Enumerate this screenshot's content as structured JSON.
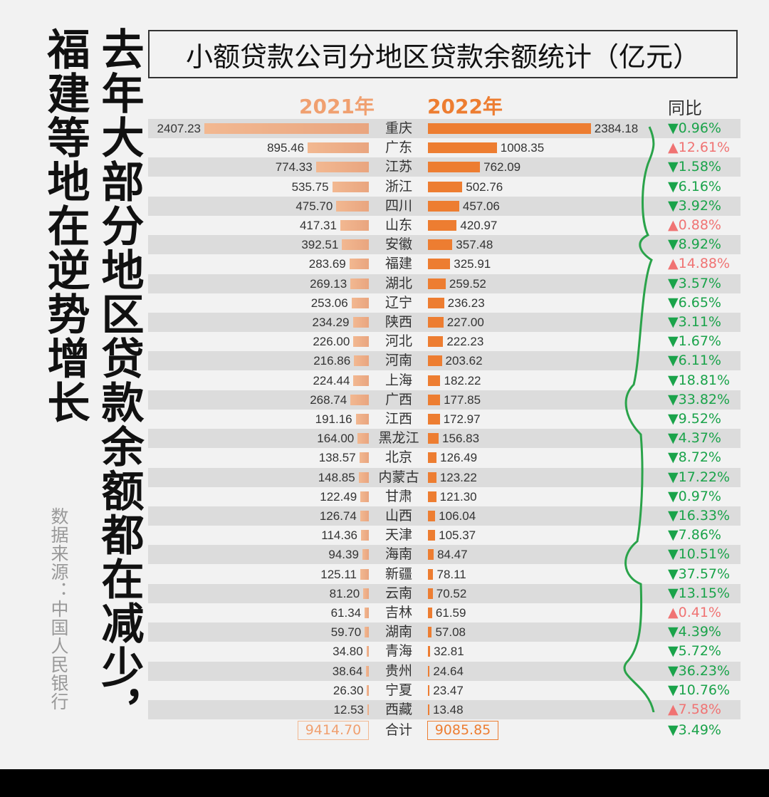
{
  "headline_left": "福建等地在逆势增长",
  "headline_right": "去年大部分地区贷款余额都在减少，",
  "source": "数据来源：中国人民银行",
  "colors": {
    "bar_2021": "#f2b891",
    "bar_2022": "#ed7d31",
    "down": "#1aa34a",
    "up": "#f07373",
    "band": "#dcdcdc"
  },
  "chart_data": {
    "type": "bar",
    "title": "小额贷款公司分地区贷款余额统计（亿元）",
    "series_labels": [
      "2021年",
      "2022年"
    ],
    "yoy_label": "同比",
    "categories": [
      "重庆",
      "广东",
      "江苏",
      "浙江",
      "四川",
      "山东",
      "安徽",
      "福建",
      "湖北",
      "辽宁",
      "陕西",
      "河北",
      "河南",
      "上海",
      "广西",
      "江西",
      "黑龙江",
      "北京",
      "内蒙古",
      "甘肃",
      "山西",
      "天津",
      "海南",
      "新疆",
      "云南",
      "吉林",
      "湖南",
      "青海",
      "贵州",
      "宁夏",
      "西藏"
    ],
    "series": [
      {
        "name": "2021年",
        "values": [
          "2407.23",
          "895.46",
          "774.33",
          "535.75",
          "475.70",
          "417.31",
          "392.51",
          "283.69",
          "269.13",
          "253.06",
          "234.29",
          "226.00",
          "216.86",
          "224.44",
          "268.74",
          "191.16",
          "164.00",
          "138.57",
          "148.85",
          "122.49",
          "126.74",
          "114.36",
          "94.39",
          "125.11",
          "81.20",
          "61.34",
          "59.70",
          "34.80",
          "38.64",
          "26.30",
          "12.53"
        ]
      },
      {
        "name": "2022年",
        "values": [
          "2384.18",
          "1008.35",
          "762.09",
          "502.76",
          "457.06",
          "420.97",
          "357.48",
          "325.91",
          "259.52",
          "236.23",
          "227.00",
          "222.23",
          "203.62",
          "182.22",
          "177.85",
          "172.97",
          "156.83",
          "126.49",
          "123.22",
          "121.30",
          "106.04",
          "105.37",
          "84.47",
          "78.11",
          "70.52",
          "61.59",
          "57.08",
          "32.81",
          "24.64",
          "23.47",
          "13.48"
        ]
      }
    ],
    "yoy": [
      {
        "dir": "down",
        "text": "0.96%"
      },
      {
        "dir": "up",
        "text": "12.61%"
      },
      {
        "dir": "down",
        "text": "1.58%"
      },
      {
        "dir": "down",
        "text": "6.16%"
      },
      {
        "dir": "down",
        "text": "3.92%"
      },
      {
        "dir": "up",
        "text": "0.88%"
      },
      {
        "dir": "down",
        "text": "8.92%"
      },
      {
        "dir": "up",
        "text": "14.88%"
      },
      {
        "dir": "down",
        "text": "3.57%"
      },
      {
        "dir": "down",
        "text": "6.65%"
      },
      {
        "dir": "down",
        "text": "3.11%"
      },
      {
        "dir": "down",
        "text": "1.67%"
      },
      {
        "dir": "down",
        "text": "6.11%"
      },
      {
        "dir": "down",
        "text": "18.81%"
      },
      {
        "dir": "down",
        "text": "33.82%"
      },
      {
        "dir": "down",
        "text": "9.52%"
      },
      {
        "dir": "down",
        "text": "4.37%"
      },
      {
        "dir": "down",
        "text": "8.72%"
      },
      {
        "dir": "down",
        "text": "17.22%"
      },
      {
        "dir": "down",
        "text": "0.97%"
      },
      {
        "dir": "down",
        "text": "16.33%"
      },
      {
        "dir": "down",
        "text": "7.86%"
      },
      {
        "dir": "down",
        "text": "10.51%"
      },
      {
        "dir": "down",
        "text": "37.57%"
      },
      {
        "dir": "down",
        "text": "13.15%"
      },
      {
        "dir": "up",
        "text": "0.41%"
      },
      {
        "dir": "down",
        "text": "4.39%"
      },
      {
        "dir": "down",
        "text": "5.72%"
      },
      {
        "dir": "down",
        "text": "36.23%"
      },
      {
        "dir": "down",
        "text": "10.76%"
      },
      {
        "dir": "up",
        "text": "7.58%"
      }
    ],
    "total": {
      "label": "合计",
      "v2021": "9414.70",
      "v2022": "9085.85",
      "yoy": {
        "dir": "down",
        "text": "3.49%"
      }
    },
    "up_symbol": "▲",
    "down_symbol": "▼"
  }
}
